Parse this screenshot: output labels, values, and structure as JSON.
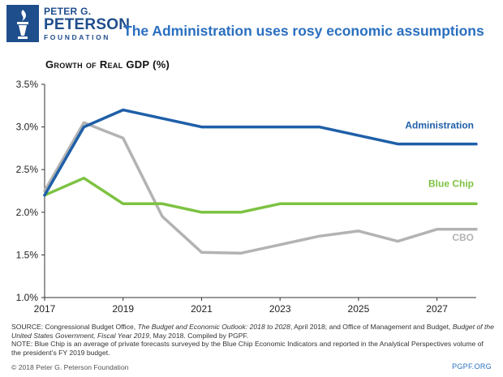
{
  "header": {
    "logo_line1": "PETER G.",
    "logo_line2": "PETERSON",
    "logo_line3": "FOUNDATION",
    "title": "The Administration uses rosy economic assumptions"
  },
  "colors": {
    "brand_blue": "#1f4e8c",
    "title_blue": "#2a6fc0",
    "administration": "#1f5fa8",
    "blue_chip": "#7dc242",
    "cbo": "#b3b3b3"
  },
  "chart_data": {
    "type": "line",
    "title": "Growth of Real GDP (%)",
    "xlabel": "",
    "ylabel": "",
    "x": [
      2017,
      2018,
      2019,
      2020,
      2021,
      2022,
      2023,
      2024,
      2025,
      2026,
      2027,
      2028
    ],
    "xticks": [
      2017,
      2019,
      2021,
      2023,
      2025,
      2027
    ],
    "xtick_labels": [
      "2017",
      "2019",
      "2021",
      "2023",
      "2025",
      "2027"
    ],
    "xlim": [
      2017,
      2028
    ],
    "yticks": [
      1.0,
      1.5,
      2.0,
      2.5,
      3.0,
      3.5
    ],
    "ytick_labels": [
      "1.0%",
      "1.5%",
      "2.0%",
      "2.5%",
      "3.0%",
      "3.5%"
    ],
    "ylim": [
      1.0,
      3.5
    ],
    "grid": false,
    "series": [
      {
        "name": "Administration",
        "color": "#1f5fa8",
        "values": [
          2.2,
          3.0,
          3.2,
          3.1,
          3.0,
          3.0,
          3.0,
          3.0,
          2.9,
          2.8,
          2.8,
          2.8
        ]
      },
      {
        "name": "Blue Chip",
        "color": "#7dc242",
        "values": [
          2.2,
          2.4,
          2.1,
          2.1,
          2.0,
          2.0,
          2.1,
          2.1,
          2.1,
          2.1,
          2.1,
          2.1
        ]
      },
      {
        "name": "CBO",
        "color": "#b3b3b3",
        "values": [
          2.25,
          3.05,
          2.87,
          1.95,
          1.53,
          1.52,
          1.62,
          1.72,
          1.78,
          1.66,
          1.8,
          1.8
        ]
      }
    ]
  },
  "notes": {
    "source_prefix": "SOURCE: Congressional Budget Office, ",
    "source_title1": "The Budget and Economic Outlook: 2018 to 2028",
    "source_mid": ", April 2018; and Office of Management and Budget, ",
    "source_title2": "Budget of the United States Government, Fiscal Year 2019",
    "source_suffix": ", May 2018. Compiled by PGPF.",
    "note": "NOTE: Blue Chip is an average of private forecasts surveyed by the Blue Chip Economic Indicators and reported in the Analytical Perspectives volume of the president’s FY 2019 budget."
  },
  "footer": {
    "copyright": "© 2018 Peter G. Peterson Foundation",
    "site": "PGPF.ORG"
  }
}
